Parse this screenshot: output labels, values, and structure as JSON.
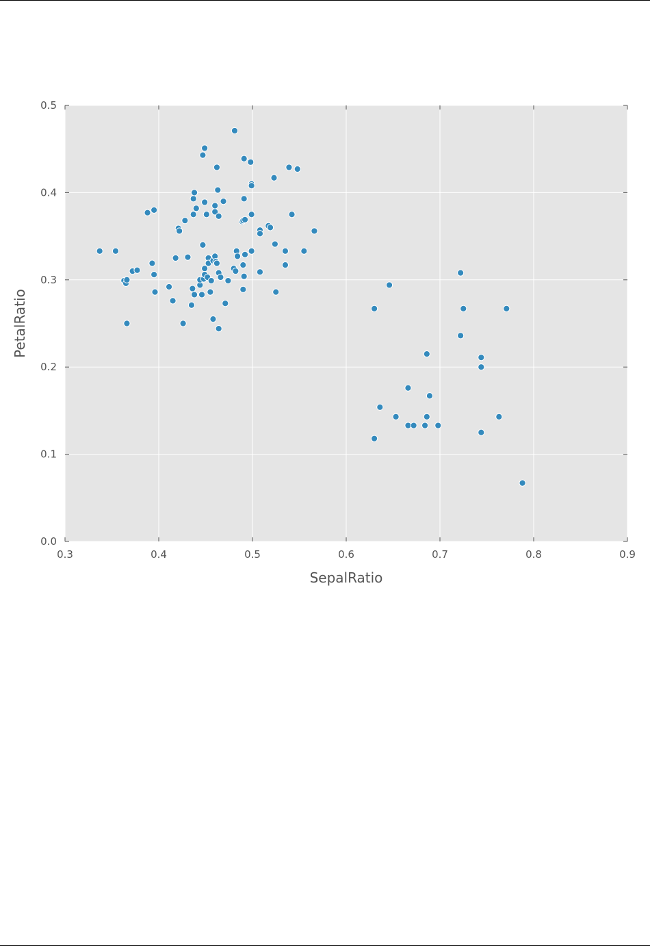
{
  "chart_data": {
    "type": "scatter",
    "title": "",
    "xlabel": "SepalRatio",
    "ylabel": "PetalRatio",
    "xlim": [
      0.3,
      0.9
    ],
    "ylim": [
      0.0,
      0.5
    ],
    "grid": true,
    "legend": "none",
    "colors": {
      "plot_background": "#e5e5e5",
      "grid": "#ffffff",
      "point": "#348abd",
      "point_edge": "#ffffff"
    },
    "x_ticks": [
      "0.3",
      "0.4",
      "0.5",
      "0.6",
      "0.7",
      "0.8",
      "0.9"
    ],
    "y_ticks": [
      "0.0",
      "0.1",
      "0.2",
      "0.3",
      "0.4",
      "0.5"
    ],
    "series": [
      {
        "points": [
          [
            0.337,
            0.333
          ],
          [
            0.354,
            0.333
          ],
          [
            0.363,
            0.299
          ],
          [
            0.365,
            0.296
          ],
          [
            0.366,
            0.3
          ],
          [
            0.366,
            0.25
          ],
          [
            0.372,
            0.31
          ],
          [
            0.377,
            0.311
          ],
          [
            0.388,
            0.377
          ],
          [
            0.393,
            0.319
          ],
          [
            0.395,
            0.38
          ],
          [
            0.395,
            0.306
          ],
          [
            0.396,
            0.286
          ],
          [
            0.411,
            0.292
          ],
          [
            0.415,
            0.276
          ],
          [
            0.418,
            0.325
          ],
          [
            0.421,
            0.359
          ],
          [
            0.422,
            0.356
          ],
          [
            0.426,
            0.25
          ],
          [
            0.428,
            0.368
          ],
          [
            0.431,
            0.326
          ],
          [
            0.435,
            0.271
          ],
          [
            0.436,
            0.29
          ],
          [
            0.437,
            0.393
          ],
          [
            0.437,
            0.375
          ],
          [
            0.438,
            0.4
          ],
          [
            0.438,
            0.283
          ],
          [
            0.44,
            0.382
          ],
          [
            0.444,
            0.294
          ],
          [
            0.444,
            0.3
          ],
          [
            0.446,
            0.283
          ],
          [
            0.447,
            0.443
          ],
          [
            0.447,
            0.34
          ],
          [
            0.448,
            0.301
          ],
          [
            0.449,
            0.451
          ],
          [
            0.449,
            0.389
          ],
          [
            0.449,
            0.313
          ],
          [
            0.449,
            0.306
          ],
          [
            0.451,
            0.375
          ],
          [
            0.452,
            0.303
          ],
          [
            0.453,
            0.325
          ],
          [
            0.453,
            0.319
          ],
          [
            0.455,
            0.286
          ],
          [
            0.456,
            0.299
          ],
          [
            0.458,
            0.322
          ],
          [
            0.458,
            0.255
          ],
          [
            0.46,
            0.385
          ],
          [
            0.46,
            0.378
          ],
          [
            0.46,
            0.327
          ],
          [
            0.461,
            0.321
          ],
          [
            0.462,
            0.429
          ],
          [
            0.462,
            0.319
          ],
          [
            0.463,
            0.403
          ],
          [
            0.464,
            0.373
          ],
          [
            0.464,
            0.308
          ],
          [
            0.464,
            0.244
          ],
          [
            0.466,
            0.303
          ],
          [
            0.469,
            0.39
          ],
          [
            0.471,
            0.273
          ],
          [
            0.474,
            0.299
          ],
          [
            0.48,
            0.313
          ],
          [
            0.481,
            0.471
          ],
          [
            0.482,
            0.31
          ],
          [
            0.483,
            0.333
          ],
          [
            0.484,
            0.327
          ],
          [
            0.489,
            0.367
          ],
          [
            0.49,
            0.368
          ],
          [
            0.49,
            0.317
          ],
          [
            0.49,
            0.289
          ],
          [
            0.491,
            0.439
          ],
          [
            0.491,
            0.393
          ],
          [
            0.491,
            0.304
          ],
          [
            0.492,
            0.369
          ],
          [
            0.492,
            0.329
          ],
          [
            0.498,
            0.435
          ],
          [
            0.499,
            0.41
          ],
          [
            0.499,
            0.408
          ],
          [
            0.499,
            0.375
          ],
          [
            0.499,
            0.333
          ],
          [
            0.508,
            0.357
          ],
          [
            0.508,
            0.353
          ],
          [
            0.508,
            0.309
          ],
          [
            0.517,
            0.362
          ],
          [
            0.519,
            0.36
          ],
          [
            0.523,
            0.417
          ],
          [
            0.524,
            0.341
          ],
          [
            0.525,
            0.286
          ],
          [
            0.535,
            0.333
          ],
          [
            0.535,
            0.317
          ],
          [
            0.539,
            0.429
          ],
          [
            0.542,
            0.375
          ],
          [
            0.548,
            0.427
          ],
          [
            0.555,
            0.333
          ],
          [
            0.566,
            0.356
          ],
          [
            0.63,
            0.267
          ],
          [
            0.63,
            0.118
          ],
          [
            0.636,
            0.154
          ],
          [
            0.646,
            0.294
          ],
          [
            0.653,
            0.143
          ],
          [
            0.666,
            0.176
          ],
          [
            0.666,
            0.133
          ],
          [
            0.672,
            0.133
          ],
          [
            0.684,
            0.133
          ],
          [
            0.686,
            0.215
          ],
          [
            0.686,
            0.143
          ],
          [
            0.689,
            0.167
          ],
          [
            0.698,
            0.133
          ],
          [
            0.722,
            0.308
          ],
          [
            0.722,
            0.236
          ],
          [
            0.725,
            0.267
          ],
          [
            0.744,
            0.211
          ],
          [
            0.744,
            0.2
          ],
          [
            0.744,
            0.125
          ],
          [
            0.763,
            0.143
          ],
          [
            0.771,
            0.267
          ],
          [
            0.788,
            0.067
          ]
        ]
      }
    ]
  }
}
